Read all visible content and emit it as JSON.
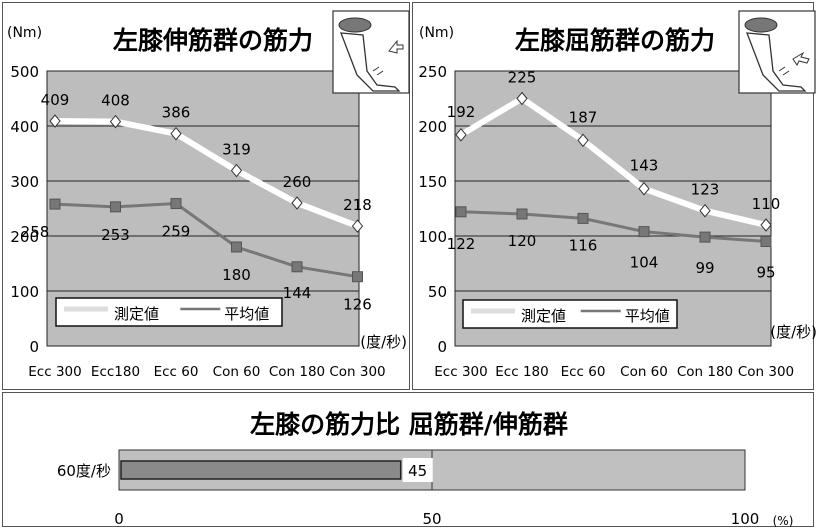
{
  "chart_data": [
    {
      "type": "line",
      "title": "左膝伸筋群の筋力",
      "y_unit": "(Nm)",
      "x_unit": "(度/秒)",
      "categories": [
        "Ecc 300",
        "Ecc180",
        "Ecc 60",
        "Con 60",
        "Con 180",
        "Con 300"
      ],
      "ylim": [
        0,
        500
      ],
      "yticks": [
        0,
        100,
        200,
        300,
        400,
        500
      ],
      "legend_location": "bottom-left",
      "series": [
        {
          "name": "測定値",
          "values": [
            409,
            408,
            386,
            319,
            260,
            218
          ],
          "color": "#ffffff",
          "marker": "diamond"
        },
        {
          "name": "平均値",
          "values": [
            258,
            253,
            259,
            180,
            144,
            126
          ],
          "color": "#777777",
          "marker": "square"
        }
      ]
    },
    {
      "type": "line",
      "title": "左膝屈筋群の筋力",
      "y_unit": "(Nm)",
      "x_unit": "(度/秒)",
      "categories": [
        "Ecc 300",
        "Ecc 180",
        "Ecc 60",
        "Con 60",
        "Con 180",
        "Con 300"
      ],
      "ylim": [
        0,
        250
      ],
      "yticks": [
        0,
        50,
        100,
        150,
        200,
        250
      ],
      "legend_location": "bottom-left",
      "series": [
        {
          "name": "測定値",
          "values": [
            192,
            225,
            187,
            143,
            123,
            110
          ],
          "color": "#ffffff",
          "marker": "diamond"
        },
        {
          "name": "平均値",
          "values": [
            122,
            120,
            116,
            104,
            99,
            95
          ],
          "color": "#777777",
          "marker": "square"
        }
      ]
    },
    {
      "type": "bar",
      "orientation": "horizontal",
      "title": "左膝の筋力比 屈筋群/伸筋群",
      "categories": [
        "60度/秒"
      ],
      "values": [
        45
      ],
      "x_unit": "(%)",
      "xlim": [
        0,
        100
      ],
      "xticks": [
        0,
        50,
        100
      ]
    }
  ],
  "colors": {
    "plot_bg": "#bdbdbd",
    "grid": "#222222",
    "bar_fill": "#8a8a8a"
  }
}
